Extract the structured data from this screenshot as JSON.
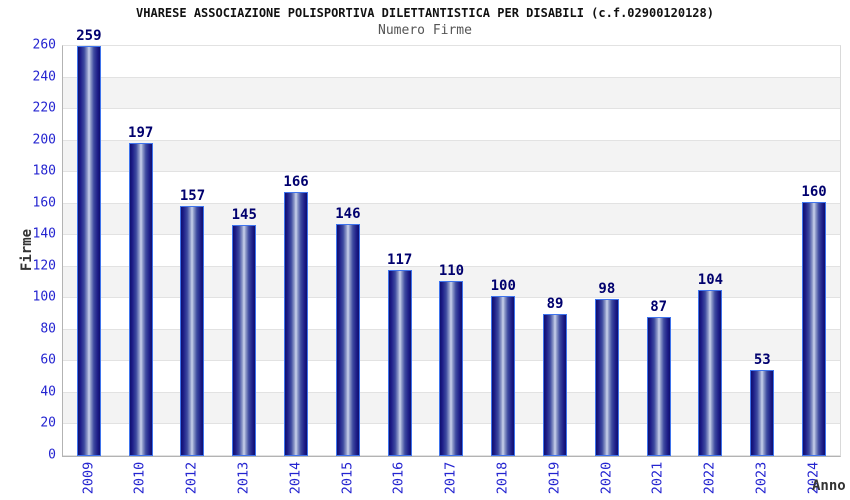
{
  "chart_data": {
    "type": "bar",
    "title": "VHARESE ASSOCIAZIONE POLISPORTIVA DILETTANTISTICA PER DISABILI (c.f.02900120128)",
    "subtitle": "Numero Firme",
    "xlabel": "Anno",
    "ylabel": "Firme",
    "categories": [
      "2009",
      "2010",
      "2012",
      "2013",
      "2014",
      "2015",
      "2016",
      "2017",
      "2018",
      "2019",
      "2020",
      "2021",
      "2022",
      "2023",
      "2024"
    ],
    "values": [
      259,
      197,
      157,
      145,
      166,
      146,
      117,
      110,
      100,
      89,
      98,
      87,
      104,
      53,
      160
    ],
    "ylim": [
      0,
      260
    ],
    "y_ticks": [
      0,
      20,
      40,
      60,
      80,
      100,
      120,
      140,
      160,
      180,
      200,
      220,
      240,
      260
    ],
    "grid": "horizontal gridlines every 20 with alternating white/gray bands",
    "legend": "none",
    "x_tick_rotation_deg": -90,
    "colors": {
      "tick_label": "#2424d0",
      "value_label": "#00006e",
      "bar_outline": "#3f74ed",
      "bar_dark": "#0f0f6e",
      "bar_light": "#cad2ec",
      "band_gray": "#f3f3f3",
      "gridline": "#e2e2e2",
      "title": "#111111",
      "subtitle": "#555555",
      "axis_label": "#333333"
    }
  }
}
